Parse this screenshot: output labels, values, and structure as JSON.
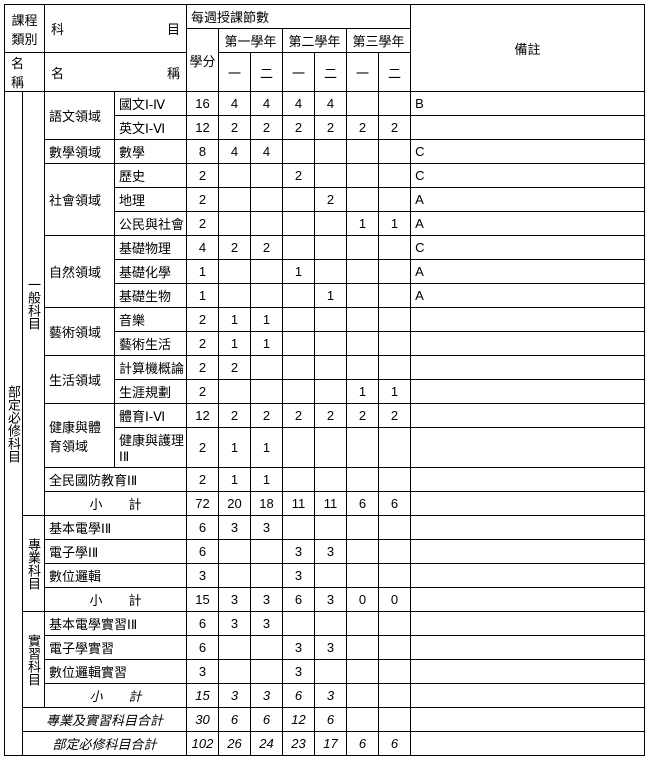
{
  "headers": {
    "h_category": "課程類別",
    "h_subject": "科　　　目",
    "h_weekly": "每週授課節數",
    "h_notes": "備註",
    "h_y1": "第一學年",
    "h_y2": "第二學年",
    "h_y3": "第三學年",
    "h_name1": "名　稱",
    "h_name2": "名　　稱",
    "h_credits": "學分",
    "h_s1": "一",
    "h_s2": "二",
    "h_s3": "一",
    "h_s4": "二",
    "h_s5": "一",
    "h_s6": "二"
  },
  "cat_main": "部定必修科目",
  "grp_general": "一般科目",
  "grp_prof": "專業科目",
  "grp_practice": "實習科目",
  "dom_lang": "語文領域",
  "dom_math": "數學領域",
  "dom_social": "社會領域",
  "dom_nature": "自然領域",
  "dom_art": "藝術領域",
  "dom_life": "生活領域",
  "dom_pe": "健康與體育領域",
  "dom_ndef": "全民國防教育ⅠⅡ",
  "subj": {
    "chinese": "國文Ⅰ-Ⅳ",
    "english": "英文Ⅰ-Ⅵ",
    "math": "數學",
    "history": "歷史",
    "geo": "地理",
    "civic": "公民與社會",
    "physics": "基礎物理",
    "chem": "基礎化學",
    "bio": "基礎生物",
    "music": "音樂",
    "artlife": "藝術生活",
    "cs": "計算機概論",
    "career": "生涯規劃",
    "pe": "體育Ⅰ-Ⅵ",
    "health": "健康與護理ⅠⅡ",
    "be": "基本電學ⅠⅡ",
    "elec": "電子學ⅠⅡ",
    "digi": "數位邏輯",
    "be_lab": "基本電學實習ⅠⅡ",
    "elec_lab": "電子學實習",
    "digi_lab": "數位邏輯實習"
  },
  "lbl_subtotal": "小　　計",
  "lbl_proftotal": "專業及實習科目合計",
  "lbl_reqtotal": "部定必修科目合計",
  "rows": {
    "chinese": {
      "cr": "16",
      "s1": "4",
      "s2": "4",
      "s3": "4",
      "s4": "4",
      "s5": "",
      "s6": "",
      "n": "B"
    },
    "english": {
      "cr": "12",
      "s1": "2",
      "s2": "2",
      "s3": "2",
      "s4": "2",
      "s5": "2",
      "s6": "2",
      "n": ""
    },
    "math": {
      "cr": "8",
      "s1": "4",
      "s2": "4",
      "s3": "",
      "s4": "",
      "s5": "",
      "s6": "",
      "n": "C"
    },
    "history": {
      "cr": "2",
      "s1": "",
      "s2": "",
      "s3": "2",
      "s4": "",
      "s5": "",
      "s6": "",
      "n": "C"
    },
    "geo": {
      "cr": "2",
      "s1": "",
      "s2": "",
      "s3": "",
      "s4": "2",
      "s5": "",
      "s6": "",
      "n": "A"
    },
    "civic": {
      "cr": "2",
      "s1": "",
      "s2": "",
      "s3": "",
      "s4": "",
      "s5": "1",
      "s6": "1",
      "n": "A"
    },
    "physics": {
      "cr": "4",
      "s1": "2",
      "s2": "2",
      "s3": "",
      "s4": "",
      "s5": "",
      "s6": "",
      "n": "C"
    },
    "chem": {
      "cr": "1",
      "s1": "",
      "s2": "",
      "s3": "1",
      "s4": "",
      "s5": "",
      "s6": "",
      "n": "A"
    },
    "bio": {
      "cr": "1",
      "s1": "",
      "s2": "",
      "s3": "",
      "s4": "1",
      "s5": "",
      "s6": "",
      "n": "A"
    },
    "music": {
      "cr": "2",
      "s1": "1",
      "s2": "1",
      "s3": "",
      "s4": "",
      "s5": "",
      "s6": "",
      "n": ""
    },
    "artlife": {
      "cr": "2",
      "s1": "1",
      "s2": "1",
      "s3": "",
      "s4": "",
      "s5": "",
      "s6": "",
      "n": ""
    },
    "cs": {
      "cr": "2",
      "s1": "2",
      "s2": "",
      "s3": "",
      "s4": "",
      "s5": "",
      "s6": "",
      "n": ""
    },
    "career": {
      "cr": "2",
      "s1": "",
      "s2": "",
      "s3": "",
      "s4": "",
      "s5": "1",
      "s6": "1",
      "n": ""
    },
    "pe": {
      "cr": "12",
      "s1": "2",
      "s2": "2",
      "s3": "2",
      "s4": "2",
      "s5": "2",
      "s6": "2",
      "n": ""
    },
    "health": {
      "cr": "2",
      "s1": "1",
      "s2": "1",
      "s3": "",
      "s4": "",
      "s5": "",
      "s6": "",
      "n": ""
    },
    "ndef": {
      "cr": "2",
      "s1": "1",
      "s2": "1",
      "s3": "",
      "s4": "",
      "s5": "",
      "s6": "",
      "n": ""
    },
    "gensub": {
      "cr": "72",
      "s1": "20",
      "s2": "18",
      "s3": "11",
      "s4": "11",
      "s5": "6",
      "s6": "6",
      "n": ""
    },
    "be": {
      "cr": "6",
      "s1": "3",
      "s2": "3",
      "s3": "",
      "s4": "",
      "s5": "",
      "s6": "",
      "n": ""
    },
    "elec": {
      "cr": "6",
      "s1": "",
      "s2": "",
      "s3": "3",
      "s4": "3",
      "s5": "",
      "s6": "",
      "n": ""
    },
    "digi": {
      "cr": "3",
      "s1": "",
      "s2": "",
      "s3": "3",
      "s4": "",
      "s5": "",
      "s6": "",
      "n": ""
    },
    "profsub": {
      "cr": "15",
      "s1": "3",
      "s2": "3",
      "s3": "6",
      "s4": "3",
      "s5": "0",
      "s6": "0",
      "n": ""
    },
    "be_lab": {
      "cr": "6",
      "s1": "3",
      "s2": "3",
      "s3": "",
      "s4": "",
      "s5": "",
      "s6": "",
      "n": ""
    },
    "elec_lab": {
      "cr": "6",
      "s1": "",
      "s2": "",
      "s3": "3",
      "s4": "3",
      "s5": "",
      "s6": "",
      "n": ""
    },
    "digi_lab": {
      "cr": "3",
      "s1": "",
      "s2": "",
      "s3": "3",
      "s4": "",
      "s5": "",
      "s6": "",
      "n": ""
    },
    "pracsub": {
      "cr": "15",
      "s1": "3",
      "s2": "3",
      "s3": "6",
      "s4": "3",
      "s5": "",
      "s6": "",
      "n": ""
    },
    "proftot": {
      "cr": "30",
      "s1": "6",
      "s2": "6",
      "s3": "12",
      "s4": "6",
      "s5": "",
      "s6": "",
      "n": ""
    },
    "reqtot": {
      "cr": "102",
      "s1": "26",
      "s2": "24",
      "s3": "23",
      "s4": "17",
      "s5": "6",
      "s6": "6",
      "n": ""
    }
  }
}
